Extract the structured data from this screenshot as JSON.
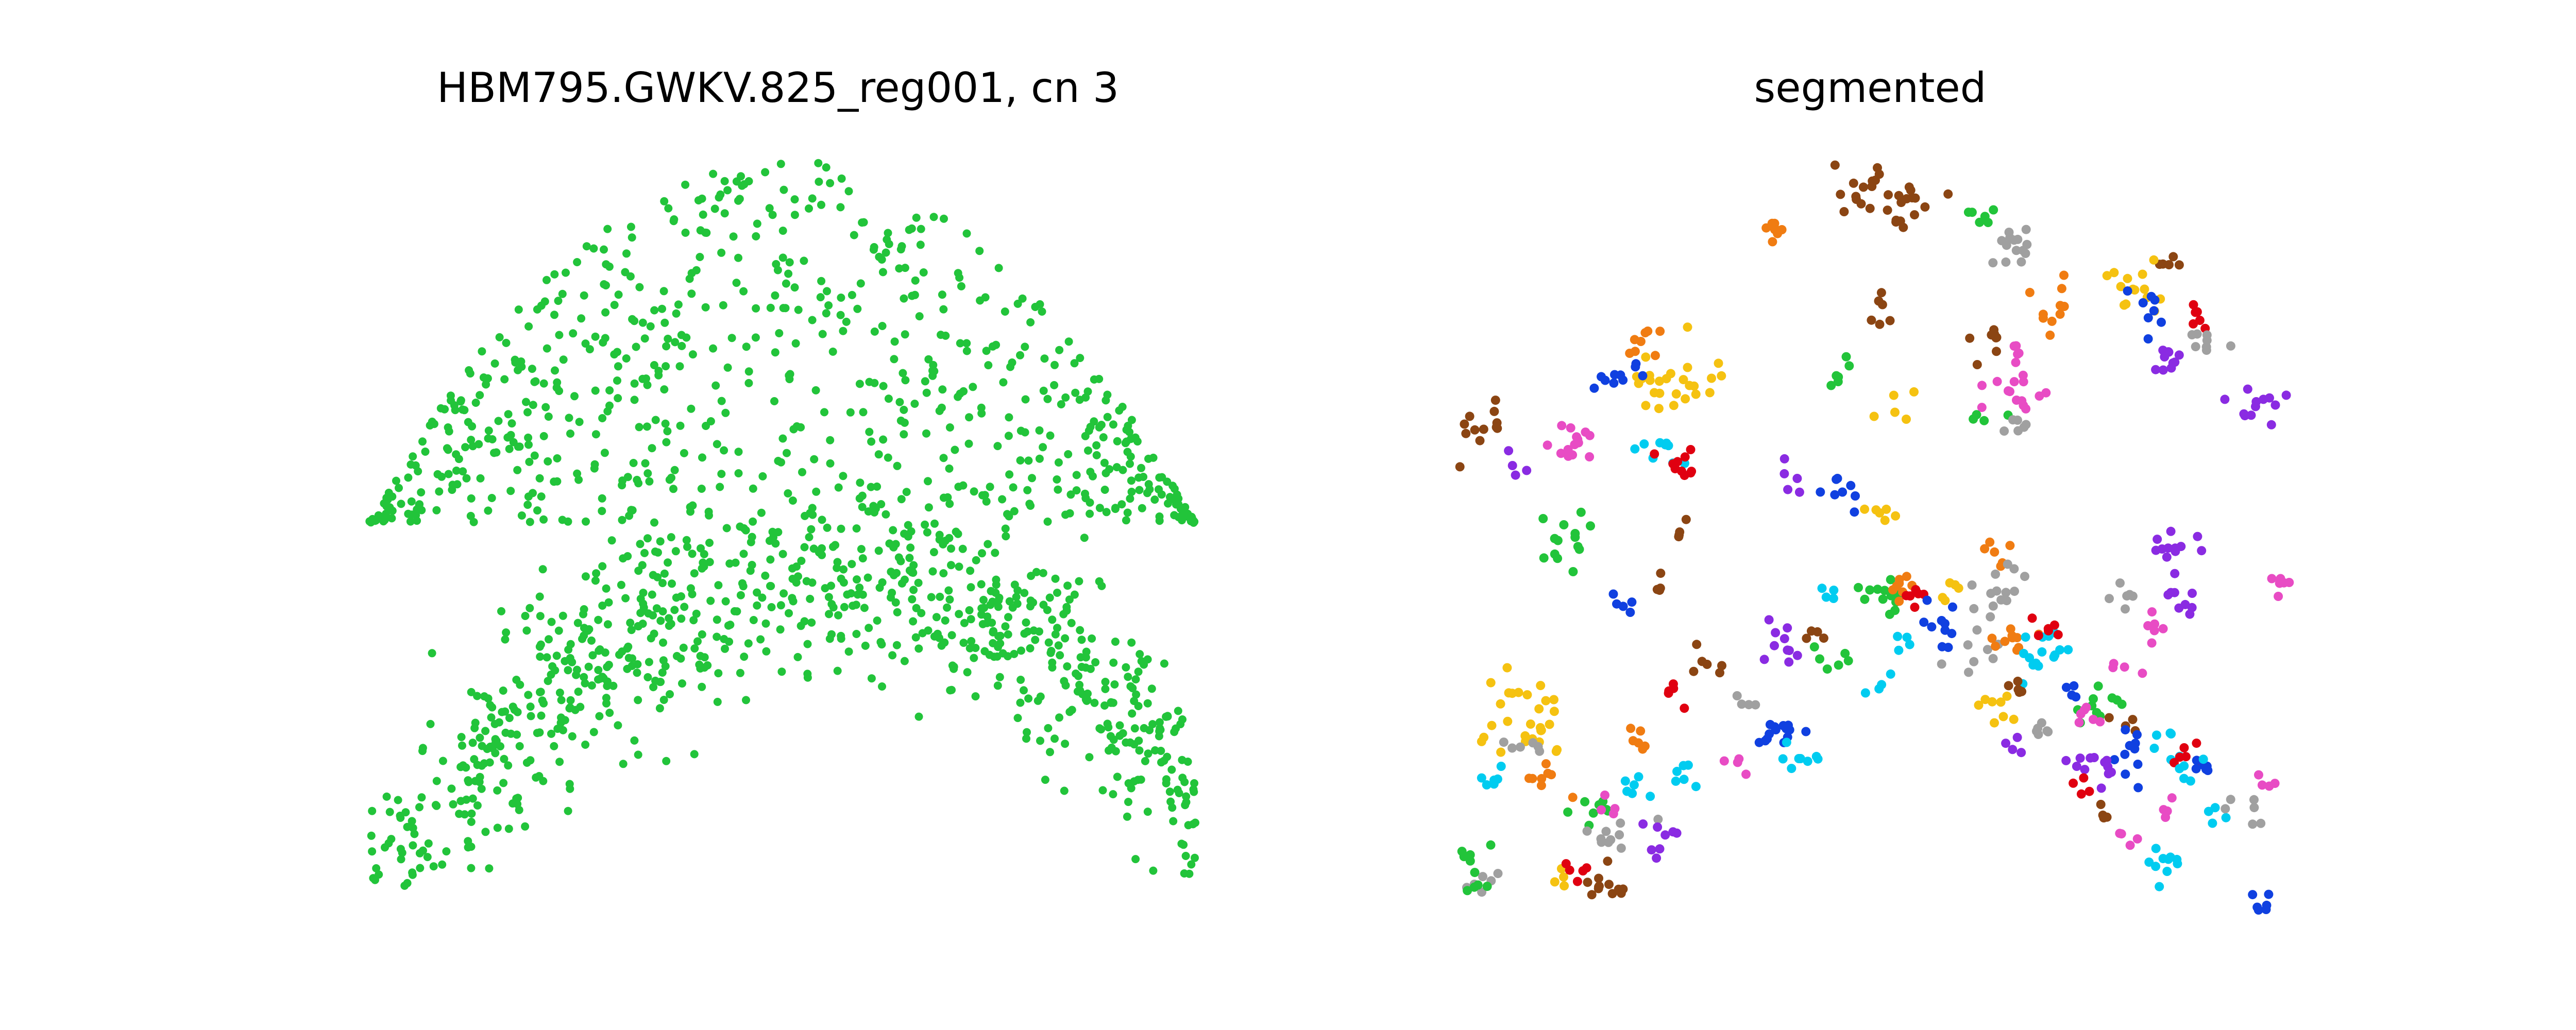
{
  "figure": {
    "background": "#ffffff",
    "axes_visible": false
  },
  "chart_data": [
    {
      "type": "scatter",
      "title": "HBM795.GWKV.825_reg001, cn 3",
      "xlabel": "",
      "ylabel": "",
      "grid": false,
      "legend": "none",
      "color": "#22c43a",
      "xlim": [
        0,
        1
      ],
      "ylim": [
        0,
        1
      ],
      "point_count_estimate": 1500,
      "regions": [
        {
          "name": "upper band",
          "cx": 0.5,
          "cy": 0.68,
          "n": 650
        },
        {
          "name": "lower arch band",
          "cx": 0.5,
          "cy": 0.25,
          "n": 850
        }
      ]
    },
    {
      "type": "scatter",
      "title": "segmented",
      "xlabel": "",
      "ylabel": "",
      "grid": false,
      "legend": "none",
      "xlim": [
        0,
        1
      ],
      "ylim": [
        0,
        1
      ],
      "palette": {
        "brown": "#8b4513",
        "orange": "#f07c12",
        "gray": "#a0a0a0",
        "green": "#22c43a",
        "gold": "#f5c211",
        "blue": "#1040e0",
        "purple": "#8a2be2",
        "pink": "#e84cc4",
        "red": "#e00010",
        "cyan": "#00ccf0"
      },
      "clusters": [
        {
          "color": "brown",
          "x": 0.5,
          "y": 0.95,
          "n": 30
        },
        {
          "color": "orange",
          "x": 0.37,
          "y": 0.91,
          "n": 8
        },
        {
          "color": "green",
          "x": 0.63,
          "y": 0.92,
          "n": 6
        },
        {
          "color": "gray",
          "x": 0.67,
          "y": 0.89,
          "n": 14
        },
        {
          "color": "brown",
          "x": 0.85,
          "y": 0.86,
          "n": 5
        },
        {
          "color": "gold",
          "x": 0.81,
          "y": 0.82,
          "n": 14
        },
        {
          "color": "red",
          "x": 0.89,
          "y": 0.79,
          "n": 6
        },
        {
          "color": "blue",
          "x": 0.83,
          "y": 0.79,
          "n": 8
        },
        {
          "color": "orange",
          "x": 0.71,
          "y": 0.8,
          "n": 10
        },
        {
          "color": "brown",
          "x": 0.5,
          "y": 0.8,
          "n": 6
        },
        {
          "color": "brown",
          "x": 0.63,
          "y": 0.75,
          "n": 8
        },
        {
          "color": "pink",
          "x": 0.67,
          "y": 0.74,
          "n": 5
        },
        {
          "color": "gray",
          "x": 0.9,
          "y": 0.75,
          "n": 8
        },
        {
          "color": "purple",
          "x": 0.86,
          "y": 0.72,
          "n": 10
        },
        {
          "color": "orange",
          "x": 0.21,
          "y": 0.75,
          "n": 8
        },
        {
          "color": "gold",
          "x": 0.25,
          "y": 0.7,
          "n": 26
        },
        {
          "color": "blue",
          "x": 0.18,
          "y": 0.7,
          "n": 10
        },
        {
          "color": "green",
          "x": 0.44,
          "y": 0.7,
          "n": 6
        },
        {
          "color": "pink",
          "x": 0.66,
          "y": 0.68,
          "n": 14
        },
        {
          "color": "gold",
          "x": 0.52,
          "y": 0.65,
          "n": 5
        },
        {
          "color": "green",
          "x": 0.62,
          "y": 0.64,
          "n": 4
        },
        {
          "color": "gray",
          "x": 0.66,
          "y": 0.63,
          "n": 6
        },
        {
          "color": "purple",
          "x": 0.97,
          "y": 0.67,
          "n": 12
        },
        {
          "color": "brown",
          "x": 0.01,
          "y": 0.62,
          "n": 12
        },
        {
          "color": "purple",
          "x": 0.05,
          "y": 0.58,
          "n": 4
        },
        {
          "color": "pink",
          "x": 0.12,
          "y": 0.6,
          "n": 14
        },
        {
          "color": "cyan",
          "x": 0.23,
          "y": 0.59,
          "n": 10
        },
        {
          "color": "red",
          "x": 0.26,
          "y": 0.58,
          "n": 10
        },
        {
          "color": "purple",
          "x": 0.39,
          "y": 0.56,
          "n": 5
        },
        {
          "color": "blue",
          "x": 0.45,
          "y": 0.54,
          "n": 8
        },
        {
          "color": "gold",
          "x": 0.5,
          "y": 0.52,
          "n": 6
        },
        {
          "color": "green",
          "x": 0.12,
          "y": 0.48,
          "n": 14
        },
        {
          "color": "brown",
          "x": 0.26,
          "y": 0.49,
          "n": 4
        },
        {
          "color": "orange",
          "x": 0.64,
          "y": 0.46,
          "n": 6
        },
        {
          "color": "purple",
          "x": 0.86,
          "y": 0.46,
          "n": 12
        },
        {
          "color": "pink",
          "x": 0.99,
          "y": 0.41,
          "n": 6
        },
        {
          "color": "brown",
          "x": 0.23,
          "y": 0.42,
          "n": 4
        },
        {
          "color": "blue",
          "x": 0.19,
          "y": 0.38,
          "n": 5
        },
        {
          "color": "cyan",
          "x": 0.43,
          "y": 0.4,
          "n": 4
        },
        {
          "color": "green",
          "x": 0.5,
          "y": 0.39,
          "n": 12
        },
        {
          "color": "orange",
          "x": 0.53,
          "y": 0.41,
          "n": 8
        },
        {
          "color": "red",
          "x": 0.55,
          "y": 0.39,
          "n": 6
        },
        {
          "color": "gold",
          "x": 0.58,
          "y": 0.4,
          "n": 5
        },
        {
          "color": "gray",
          "x": 0.65,
          "y": 0.4,
          "n": 14
        },
        {
          "color": "gray",
          "x": 0.8,
          "y": 0.4,
          "n": 6
        },
        {
          "color": "purple",
          "x": 0.86,
          "y": 0.39,
          "n": 8
        },
        {
          "color": "pink",
          "x": 0.84,
          "y": 0.35,
          "n": 6
        },
        {
          "color": "blue",
          "x": 0.57,
          "y": 0.35,
          "n": 10
        },
        {
          "color": "cyan",
          "x": 0.53,
          "y": 0.34,
          "n": 4
        },
        {
          "color": "gray",
          "x": 0.62,
          "y": 0.32,
          "n": 8
        },
        {
          "color": "orange",
          "x": 0.66,
          "y": 0.33,
          "n": 10
        },
        {
          "color": "cyan",
          "x": 0.7,
          "y": 0.32,
          "n": 16
        },
        {
          "color": "red",
          "x": 0.71,
          "y": 0.34,
          "n": 6
        },
        {
          "color": "purple",
          "x": 0.38,
          "y": 0.33,
          "n": 10
        },
        {
          "color": "brown",
          "x": 0.41,
          "y": 0.33,
          "n": 4
        },
        {
          "color": "green",
          "x": 0.44,
          "y": 0.3,
          "n": 6
        },
        {
          "color": "brown",
          "x": 0.28,
          "y": 0.3,
          "n": 6
        },
        {
          "color": "cyan",
          "x": 0.49,
          "y": 0.27,
          "n": 4
        },
        {
          "color": "pink",
          "x": 0.79,
          "y": 0.29,
          "n": 4
        },
        {
          "color": "gold",
          "x": 0.06,
          "y": 0.22,
          "n": 28
        },
        {
          "color": "gray",
          "x": 0.06,
          "y": 0.18,
          "n": 6
        },
        {
          "color": "red",
          "x": 0.24,
          "y": 0.25,
          "n": 5
        },
        {
          "color": "gray",
          "x": 0.33,
          "y": 0.24,
          "n": 4
        },
        {
          "color": "blue",
          "x": 0.38,
          "y": 0.2,
          "n": 14
        },
        {
          "color": "cyan",
          "x": 0.4,
          "y": 0.16,
          "n": 8
        },
        {
          "color": "orange",
          "x": 0.21,
          "y": 0.18,
          "n": 6
        },
        {
          "color": "gold",
          "x": 0.65,
          "y": 0.23,
          "n": 8
        },
        {
          "color": "brown",
          "x": 0.67,
          "y": 0.26,
          "n": 5
        },
        {
          "color": "gray",
          "x": 0.69,
          "y": 0.21,
          "n": 6
        },
        {
          "color": "purple",
          "x": 0.66,
          "y": 0.18,
          "n": 4
        },
        {
          "color": "green",
          "x": 0.77,
          "y": 0.24,
          "n": 10
        },
        {
          "color": "pink",
          "x": 0.76,
          "y": 0.22,
          "n": 6
        },
        {
          "color": "brown",
          "x": 0.8,
          "y": 0.21,
          "n": 4
        },
        {
          "color": "blue",
          "x": 0.74,
          "y": 0.26,
          "n": 4
        },
        {
          "color": "blue",
          "x": 0.8,
          "y": 0.17,
          "n": 10
        },
        {
          "color": "purple",
          "x": 0.77,
          "y": 0.15,
          "n": 12
        },
        {
          "color": "red",
          "x": 0.76,
          "y": 0.12,
          "n": 4
        },
        {
          "color": "cyan",
          "x": 0.86,
          "y": 0.18,
          "n": 6
        },
        {
          "color": "red",
          "x": 0.88,
          "y": 0.17,
          "n": 6
        },
        {
          "color": "blue",
          "x": 0.9,
          "y": 0.15,
          "n": 6
        },
        {
          "color": "cyan",
          "x": 0.88,
          "y": 0.14,
          "n": 5
        },
        {
          "color": "pink",
          "x": 0.98,
          "y": 0.13,
          "n": 4
        },
        {
          "color": "cyan",
          "x": 0.02,
          "y": 0.13,
          "n": 6
        },
        {
          "color": "orange",
          "x": 0.08,
          "y": 0.14,
          "n": 8
        },
        {
          "color": "green",
          "x": 0.15,
          "y": 0.1,
          "n": 8
        },
        {
          "color": "pink",
          "x": 0.16,
          "y": 0.1,
          "n": 4
        },
        {
          "color": "cyan",
          "x": 0.2,
          "y": 0.12,
          "n": 6
        },
        {
          "color": "cyan",
          "x": 0.26,
          "y": 0.15,
          "n": 6
        },
        {
          "color": "pink",
          "x": 0.32,
          "y": 0.16,
          "n": 4
        },
        {
          "color": "gray",
          "x": 0.17,
          "y": 0.06,
          "n": 10
        },
        {
          "color": "purple",
          "x": 0.23,
          "y": 0.05,
          "n": 8
        },
        {
          "color": "green",
          "x": 0.0,
          "y": 0.03,
          "n": 6
        },
        {
          "color": "gray",
          "x": 0.01,
          "y": 0.0,
          "n": 6
        },
        {
          "color": "green",
          "x": 0.0,
          "y": -0.02,
          "n": 4
        },
        {
          "color": "gold",
          "x": 0.11,
          "y": 0.0,
          "n": 4
        },
        {
          "color": "red",
          "x": 0.13,
          "y": 0.01,
          "n": 5
        },
        {
          "color": "brown",
          "x": 0.17,
          "y": -0.02,
          "n": 12
        },
        {
          "color": "brown",
          "x": 0.77,
          "y": 0.09,
          "n": 4
        },
        {
          "color": "pink",
          "x": 0.8,
          "y": 0.05,
          "n": 4
        },
        {
          "color": "pink",
          "x": 0.85,
          "y": 0.09,
          "n": 4
        },
        {
          "color": "cyan",
          "x": 0.86,
          "y": 0.02,
          "n": 10
        },
        {
          "color": "cyan",
          "x": 0.91,
          "y": 0.08,
          "n": 4
        },
        {
          "color": "gray",
          "x": 0.95,
          "y": 0.09,
          "n": 6
        },
        {
          "color": "blue",
          "x": 0.97,
          "y": -0.04,
          "n": 6
        }
      ]
    }
  ]
}
